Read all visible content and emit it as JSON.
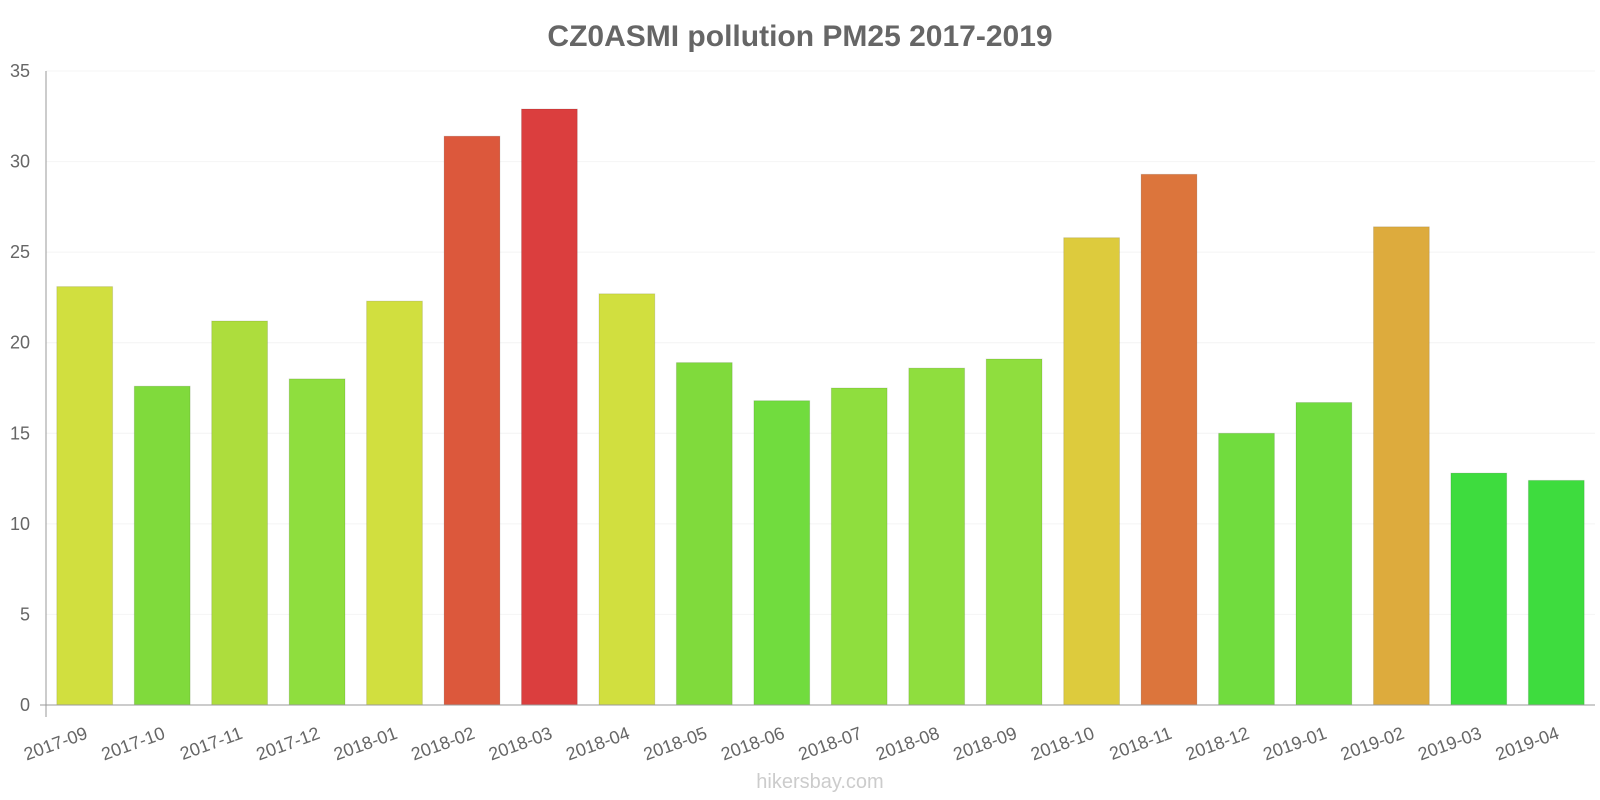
{
  "chart_data": {
    "type": "bar",
    "title": "CZ0ASMI pollution PM25 2017-2019",
    "xlabel": "",
    "ylabel": "",
    "ylim": [
      0,
      35
    ],
    "yticks": [
      0,
      5,
      10,
      15,
      20,
      25,
      30,
      35
    ],
    "grid": true,
    "categories": [
      "2017-09",
      "2017-10",
      "2017-11",
      "2017-12",
      "2018-01",
      "2018-02",
      "2018-03",
      "2018-04",
      "2018-05",
      "2018-06",
      "2018-07",
      "2018-08",
      "2018-09",
      "2018-10",
      "2018-11",
      "2018-12",
      "2019-01",
      "2019-02",
      "2019-03",
      "2019-04"
    ],
    "values": [
      23.1,
      17.6,
      21.2,
      18.0,
      22.3,
      31.4,
      32.9,
      22.7,
      18.9,
      16.8,
      17.5,
      18.6,
      19.1,
      25.8,
      29.3,
      15.0,
      16.7,
      26.4,
      12.8,
      12.4
    ],
    "colors": [
      "#cfdd35",
      "#79d832",
      "#a9db33",
      "#89dc34",
      "#cfdd35",
      "#da4f32",
      "#d93434",
      "#cfdd35",
      "#79d832",
      "#69da34",
      "#89dc34",
      "#89dc34",
      "#89dc34",
      "#dbc833",
      "#da6e32",
      "#69da34",
      "#69da34",
      "#dba633",
      "#34da34",
      "#34da34"
    ]
  },
  "watermark": "hikersbay.com"
}
